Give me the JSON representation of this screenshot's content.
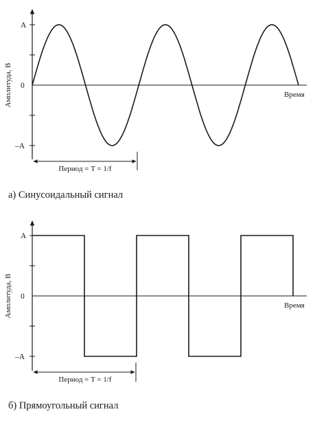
{
  "diagrams": [
    {
      "wave": "sine",
      "ylabel": "Амплитуда, В",
      "xlabel": "Время",
      "tick_top": "A",
      "tick_zero": "0",
      "tick_bottom": "–A",
      "period_label": "Период = T = 1/f",
      "caption": "а) Синусоидальный сигнал",
      "periods": 2.5
    },
    {
      "wave": "square",
      "ylabel": "Амплитуда, В",
      "xlabel": "Время",
      "tick_top": "A",
      "tick_zero": "0",
      "tick_bottom": "–A",
      "period_label": "Период = T = 1/f",
      "caption": "б) Прямоугольный сигнал",
      "periods": 2.5
    }
  ]
}
